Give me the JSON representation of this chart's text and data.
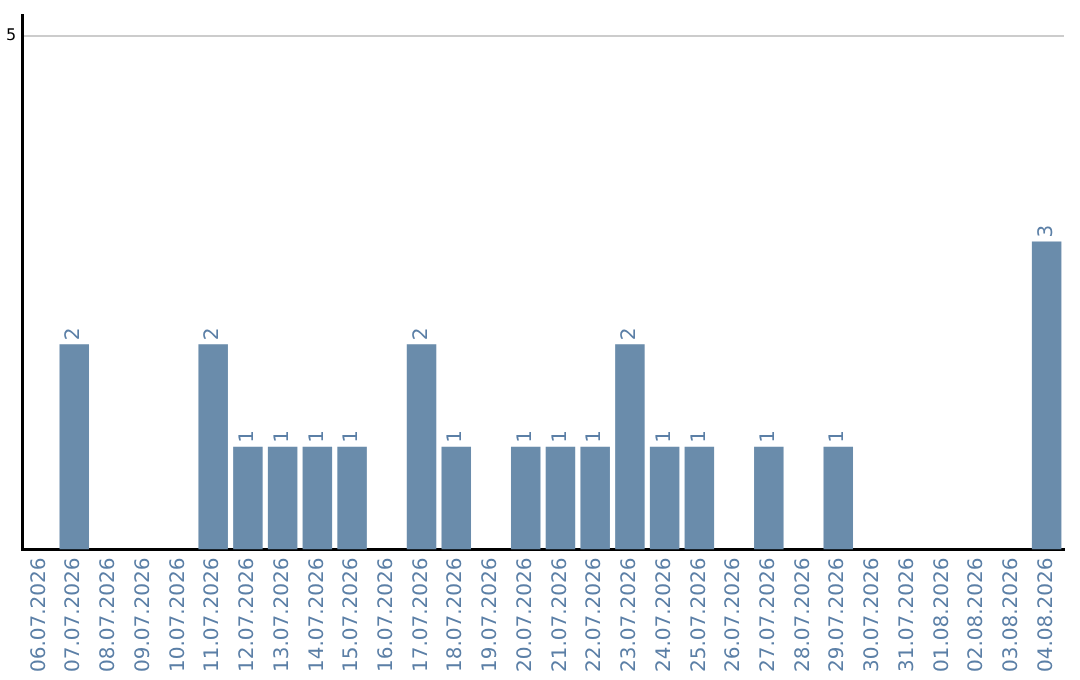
{
  "chart_data": {
    "type": "bar",
    "categories": [
      "06.07.2026",
      "07.07.2026",
      "08.07.2026",
      "09.07.2026",
      "10.07.2026",
      "11.07.2026",
      "12.07.2026",
      "13.07.2026",
      "14.07.2026",
      "15.07.2026",
      "16.07.2026",
      "17.07.2026",
      "18.07.2026",
      "19.07.2026",
      "20.07.2026",
      "21.07.2026",
      "22.07.2026",
      "23.07.2026",
      "24.07.2026",
      "25.07.2026",
      "26.07.2026",
      "27.07.2026",
      "28.07.2026",
      "29.07.2026",
      "30.07.2026",
      "31.07.2026",
      "01.08.2026",
      "02.08.2026",
      "03.08.2026",
      "04.08.2026"
    ],
    "values": [
      0,
      2,
      0,
      0,
      0,
      2,
      1,
      1,
      1,
      1,
      0,
      2,
      1,
      0,
      1,
      1,
      1,
      2,
      1,
      1,
      0,
      1,
      0,
      1,
      0,
      0,
      0,
      0,
      0,
      3
    ],
    "value_labels": [
      null,
      "2",
      null,
      null,
      null,
      "2",
      "1",
      "1",
      "1",
      "1",
      null,
      "2",
      "1",
      null,
      "1",
      "1",
      "1",
      "2",
      "1",
      "1",
      null,
      "1",
      null,
      "1",
      null,
      null,
      null,
      null,
      null,
      "3"
    ],
    "color": "#6a8cab",
    "ylim": [
      0,
      5.2
    ],
    "yticks": [
      5
    ],
    "grid": "y",
    "legend": false
  }
}
